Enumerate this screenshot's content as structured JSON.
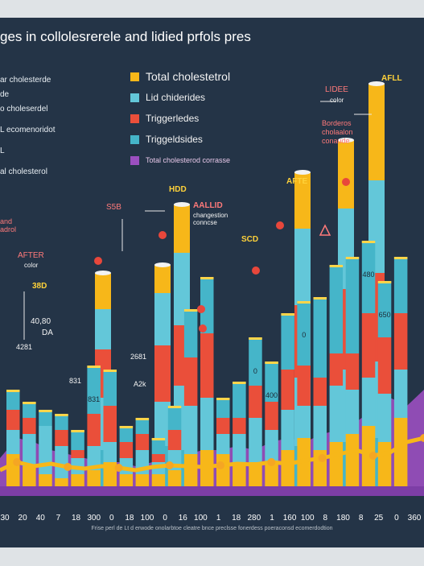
{
  "title": "ges in collolesrerele and lidied prfols pres",
  "colors": {
    "background": "#243447",
    "page": "#dfe3e6",
    "total_cholesterol": "#f7b719",
    "lid_chiderides": "#63c7d9",
    "triglerides": "#ea4f3a",
    "triggeldsides": "#45b5c9",
    "total_cholesterod": "#9b4fc0"
  },
  "legend": [
    {
      "label": "Total cholestetrol",
      "color": "#f7b719",
      "size": "big"
    },
    {
      "label": "Lid chiderides",
      "color": "#63c7d9",
      "size": "normal"
    },
    {
      "label": "Triggerledes",
      "color": "#ea4f3a",
      "size": "normal"
    },
    {
      "label": "Triggeldsides",
      "color": "#45b5c9",
      "size": "normal"
    },
    {
      "label": "Total cholesterod corrasse",
      "color": "#9b4fc0",
      "size": "small"
    }
  ],
  "side_labels": [
    {
      "text": "ar cholesterde"
    },
    {
      "text": "de"
    },
    {
      "text": "o choleserdel"
    },
    {
      "text": "L     ecomenoridot"
    },
    {
      "text": "L"
    },
    {
      "text": "al cholesterol"
    }
  ],
  "annotations": {
    "hdd": "HDD",
    "ssb": "S5B",
    "aallid": "AALLID",
    "aallid_sub": "changestion conncse",
    "afte": "AFTE",
    "scd": "SCD",
    "lidee": "LIDEE",
    "lidee_sub": "color",
    "afll": "AFLL",
    "borderos": "Borderos cholaalon conaude",
    "and": "and adrol",
    "after": "AFTER",
    "after_sub": "color",
    "n38d": "38D",
    "n4080": "40,80",
    "da": "DA",
    "n4281": "4281",
    "n831": "831",
    "n2681": "2681",
    "a2k": "A2k"
  },
  "footnote": "Frise perl de Lt d erwode onolarbtoe cleatre bnce preclsse fonerdess poeraconsd ecomerdodtion",
  "chart_data": {
    "type": "bar",
    "title": "ges in collolesrerele and lidied prfols pres",
    "stacked": true,
    "x_tick_labels": [
      "30",
      "20",
      "40",
      "7",
      "18",
      "300",
      "0",
      "18",
      "100",
      "0",
      "16",
      "100",
      "1",
      "18",
      "280",
      "1",
      "160",
      "100",
      "8",
      "180",
      "8",
      "25",
      "0",
      "360"
    ],
    "series_order": [
      "Total cholestetrol",
      "Lid chiderides",
      "Triggerledes",
      "Triggeldsides"
    ],
    "bars": [
      {
        "category": "b1",
        "segments": [
          40,
          30,
          25,
          25
        ]
      },
      {
        "category": "b2",
        "segments": [
          25,
          40,
          20,
          20
        ]
      },
      {
        "category": "b3",
        "segments": [
          15,
          60,
          0,
          20
        ]
      },
      {
        "category": "b4",
        "segments": [
          10,
          40,
          20,
          20
        ]
      },
      {
        "category": "b5",
        "segments": [
          15,
          20,
          10,
          25
        ]
      },
      {
        "category": "b6",
        "segments": [
          20,
          30,
          40,
          60
        ],
        "labels": [
          "831"
        ]
      },
      {
        "category": "b7",
        "segments": [
          30,
          25,
          45,
          45
        ]
      },
      {
        "category": "b8",
        "segments": [
          15,
          20,
          20,
          20
        ]
      },
      {
        "category": "b9",
        "segments": [
          15,
          30,
          20,
          20
        ]
      },
      {
        "category": "b10",
        "segments": [
          15,
          15,
          10,
          20
        ]
      },
      {
        "category": "b11",
        "segments": [
          20,
          25,
          25,
          30
        ]
      },
      {
        "category": "b12",
        "segments": [
          40,
          60,
          60,
          60
        ]
      },
      {
        "category": "b13",
        "segments": [
          45,
          65,
          80,
          70
        ]
      },
      {
        "category": "b14",
        "segments": [
          40,
          25,
          20,
          25
        ]
      },
      {
        "category": "b15",
        "segments": [
          30,
          35,
          20,
          45
        ]
      },
      {
        "category": "b16",
        "segments": [
          30,
          55,
          40,
          60
        ],
        "labels": [
          "0"
        ]
      },
      {
        "category": "b17",
        "segments": [
          30,
          40,
          35,
          50
        ],
        "labels": [
          "400"
        ]
      },
      {
        "category": "b18",
        "segments": [
          45,
          50,
          50,
          70
        ]
      },
      {
        "category": "b19",
        "segments": [
          60,
          40,
          50,
          80
        ],
        "labels": [
          "0"
        ]
      },
      {
        "category": "b20",
        "segments": [
          45,
          55,
          35,
          100
        ]
      },
      {
        "category": "b21",
        "segments": [
          55,
          70,
          40,
          110
        ]
      },
      {
        "category": "b22",
        "segments": [
          65,
          55,
          45,
          120
        ]
      },
      {
        "category": "b23",
        "segments": [
          75,
          60,
          80,
          90
        ],
        "labels": [
          "480"
        ]
      },
      {
        "category": "b24",
        "segments": [
          55,
          60,
          70,
          70
        ],
        "labels": [
          "650"
        ]
      },
      {
        "category": "b25",
        "segments": [
          85,
          60,
          70,
          70
        ]
      }
    ],
    "tall_bars": [
      {
        "category": "t1",
        "segments": [
          45,
          65,
          60,
          50,
          45
        ]
      },
      {
        "category": "t2",
        "segments": [
          50,
          55,
          70,
          65,
          35
        ]
      },
      {
        "category": "t3",
        "segments": [
          45,
          80,
          75,
          90,
          60
        ]
      },
      {
        "category": "t4",
        "segments": [
          50,
          85,
          90,
          95,
          70
        ]
      },
      {
        "category": "t5",
        "segments": [
          55,
          90,
          100,
          100,
          85
        ]
      },
      {
        "category": "t6",
        "segments": [
          60,
          95,
          110,
          115,
          120
        ]
      }
    ],
    "area_series": [
      {
        "name": "Total cholesterod corrasse",
        "color": "#9b4fc0",
        "values": [
          35,
          60,
          55,
          45,
          40,
          35,
          30,
          30,
          25,
          30,
          35,
          40,
          45,
          45,
          50,
          45,
          55,
          60,
          55,
          65,
          70,
          80,
          95,
          110,
          100,
          120
        ]
      },
      {
        "name": "Total cholestetrol",
        "color": "#f7b719",
        "values": [
          20,
          30,
          25,
          28,
          24,
          22,
          25,
          23,
          20,
          24,
          26,
          25,
          24,
          26,
          28,
          27,
          30,
          28,
          32,
          35,
          40,
          45,
          38,
          42,
          55,
          60
        ]
      }
    ],
    "grid": false,
    "legend_position": "top-center"
  }
}
